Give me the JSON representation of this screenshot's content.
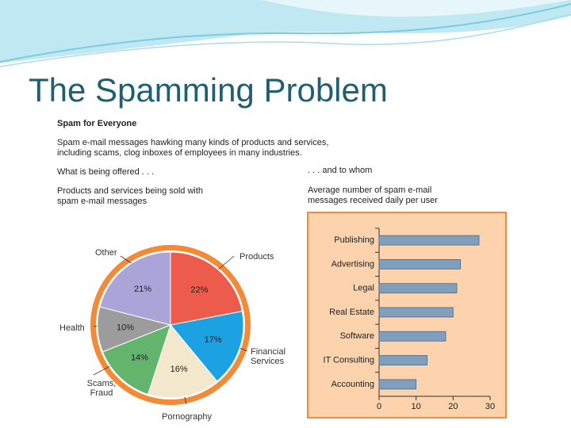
{
  "title": "The Spamming Problem",
  "figure": {
    "heading": "Spam for Everyone",
    "description": "Spam e-mail messages hawking many kinds of products and services, including scams, clog inboxes of employees in many industries.",
    "left_caption": "What is being offered . . .",
    "left_subcaption": "Products and services being sold with spam e-mail messages",
    "right_caption": ". . . and to whom",
    "right_subcaption": "Average number of spam e-mail messages received daily per user"
  },
  "chart_data": [
    {
      "type": "pie",
      "categories": [
        "Products",
        "Financial Services",
        "Pornography",
        "Scams, Fraud",
        "Health",
        "Other"
      ],
      "values": [
        22,
        17,
        16,
        14,
        10,
        21
      ],
      "value_labels": [
        "22%",
        "17%",
        "16%",
        "14%",
        "10%",
        "21%"
      ],
      "colors": [
        "#ec5b4b",
        "#1ca2e2",
        "#f3e8cc",
        "#63b46c",
        "#9c9c9c",
        "#aaa4d8"
      ]
    },
    {
      "type": "bar",
      "orientation": "horizontal",
      "categories": [
        "Publishing",
        "Advertising",
        "Legal",
        "Real Estate",
        "Software",
        "IT Consulting",
        "Accounting"
      ],
      "values": [
        27,
        22,
        21,
        20,
        18,
        13,
        10
      ],
      "xlim": [
        0,
        30
      ],
      "xticks": [
        0,
        10,
        20,
        30
      ],
      "color": "#7f9fbd"
    }
  ]
}
